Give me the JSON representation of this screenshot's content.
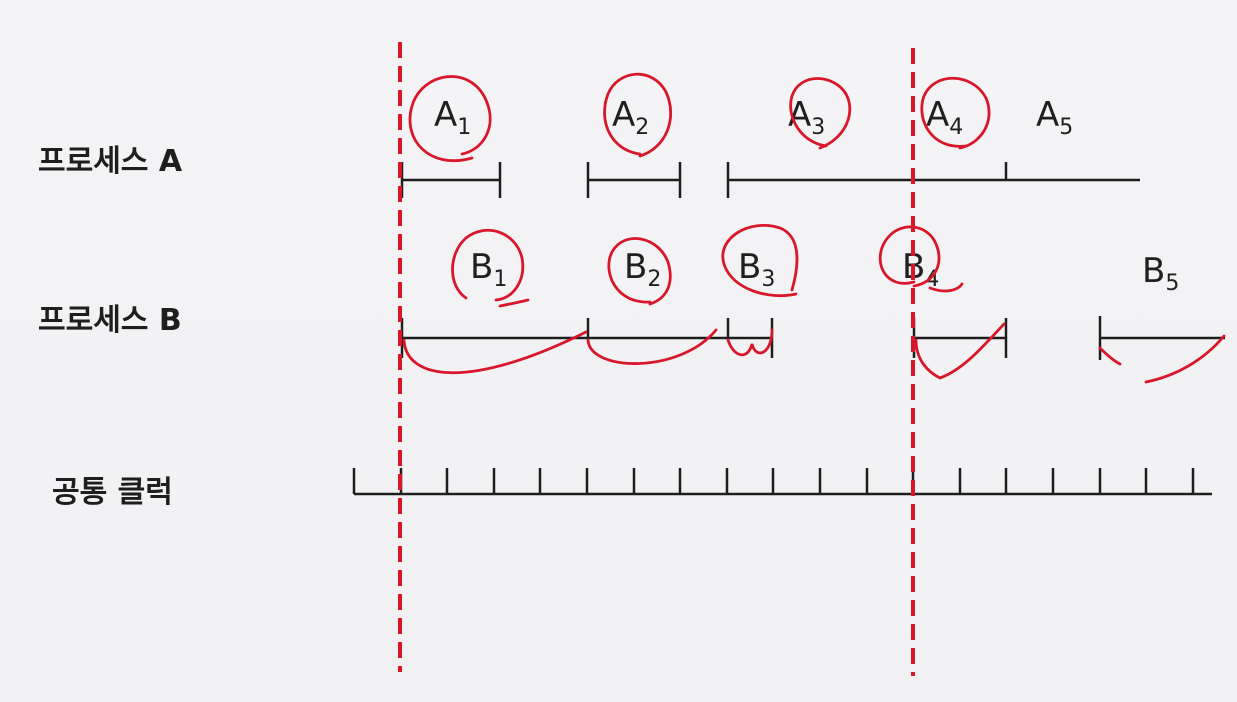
{
  "rows": {
    "process_a": {
      "label": "프로세스 A"
    },
    "process_b": {
      "label": "프로세스 B"
    },
    "clock": {
      "label": "공통 클럭"
    }
  },
  "process_a_segments": [
    {
      "letter": "A",
      "sub": "1"
    },
    {
      "letter": "A",
      "sub": "2"
    },
    {
      "letter": "A",
      "sub": "3"
    },
    {
      "letter": "A",
      "sub": "4"
    },
    {
      "letter": "A",
      "sub": "5"
    }
  ],
  "process_b_segments": [
    {
      "letter": "B",
      "sub": "1"
    },
    {
      "letter": "B",
      "sub": "2"
    },
    {
      "letter": "B",
      "sub": "3"
    },
    {
      "letter": "B",
      "sub": "4"
    },
    {
      "letter": "B",
      "sub": "5"
    }
  ],
  "colors": {
    "line": "#1e1e1e",
    "annotation": "#d8172a",
    "background": "#f3f3f5"
  }
}
